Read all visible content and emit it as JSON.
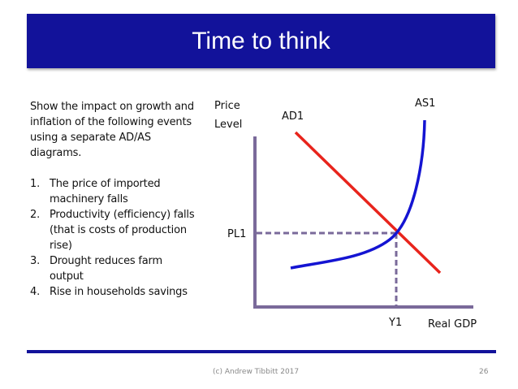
{
  "slide": {
    "title": "Time to think",
    "intro": "Show the impact on growth and inflation of the following events using a separate AD/AS diagrams.",
    "events": [
      {
        "num": "1.",
        "text": "The price of imported machinery falls"
      },
      {
        "num": "2.",
        "text": "Productivity (efficiency) falls (that is costs of production rise)"
      },
      {
        "num": "3.",
        "text": "Drought reduces farm output"
      },
      {
        "num": "4.",
        "text": "Rise in households savings"
      }
    ],
    "footer": {
      "credit": "(c) Andrew Tibbitt 2017",
      "page": "26"
    }
  },
  "diagram": {
    "y_axis_label_line1": "Price",
    "y_axis_label_line2": "Level",
    "x_axis_label": "Real GDP",
    "curves": {
      "ad": "AD1",
      "as": "AS1"
    },
    "equilibrium": {
      "price_label": "PL1",
      "output_label": "Y1"
    }
  },
  "colors": {
    "title_bar": "#12129a",
    "axis": "#7a6a9a",
    "ad_curve": "#e8241c",
    "as_curve": "#1414d2",
    "dashed_guides": "#7a6a9a"
  }
}
